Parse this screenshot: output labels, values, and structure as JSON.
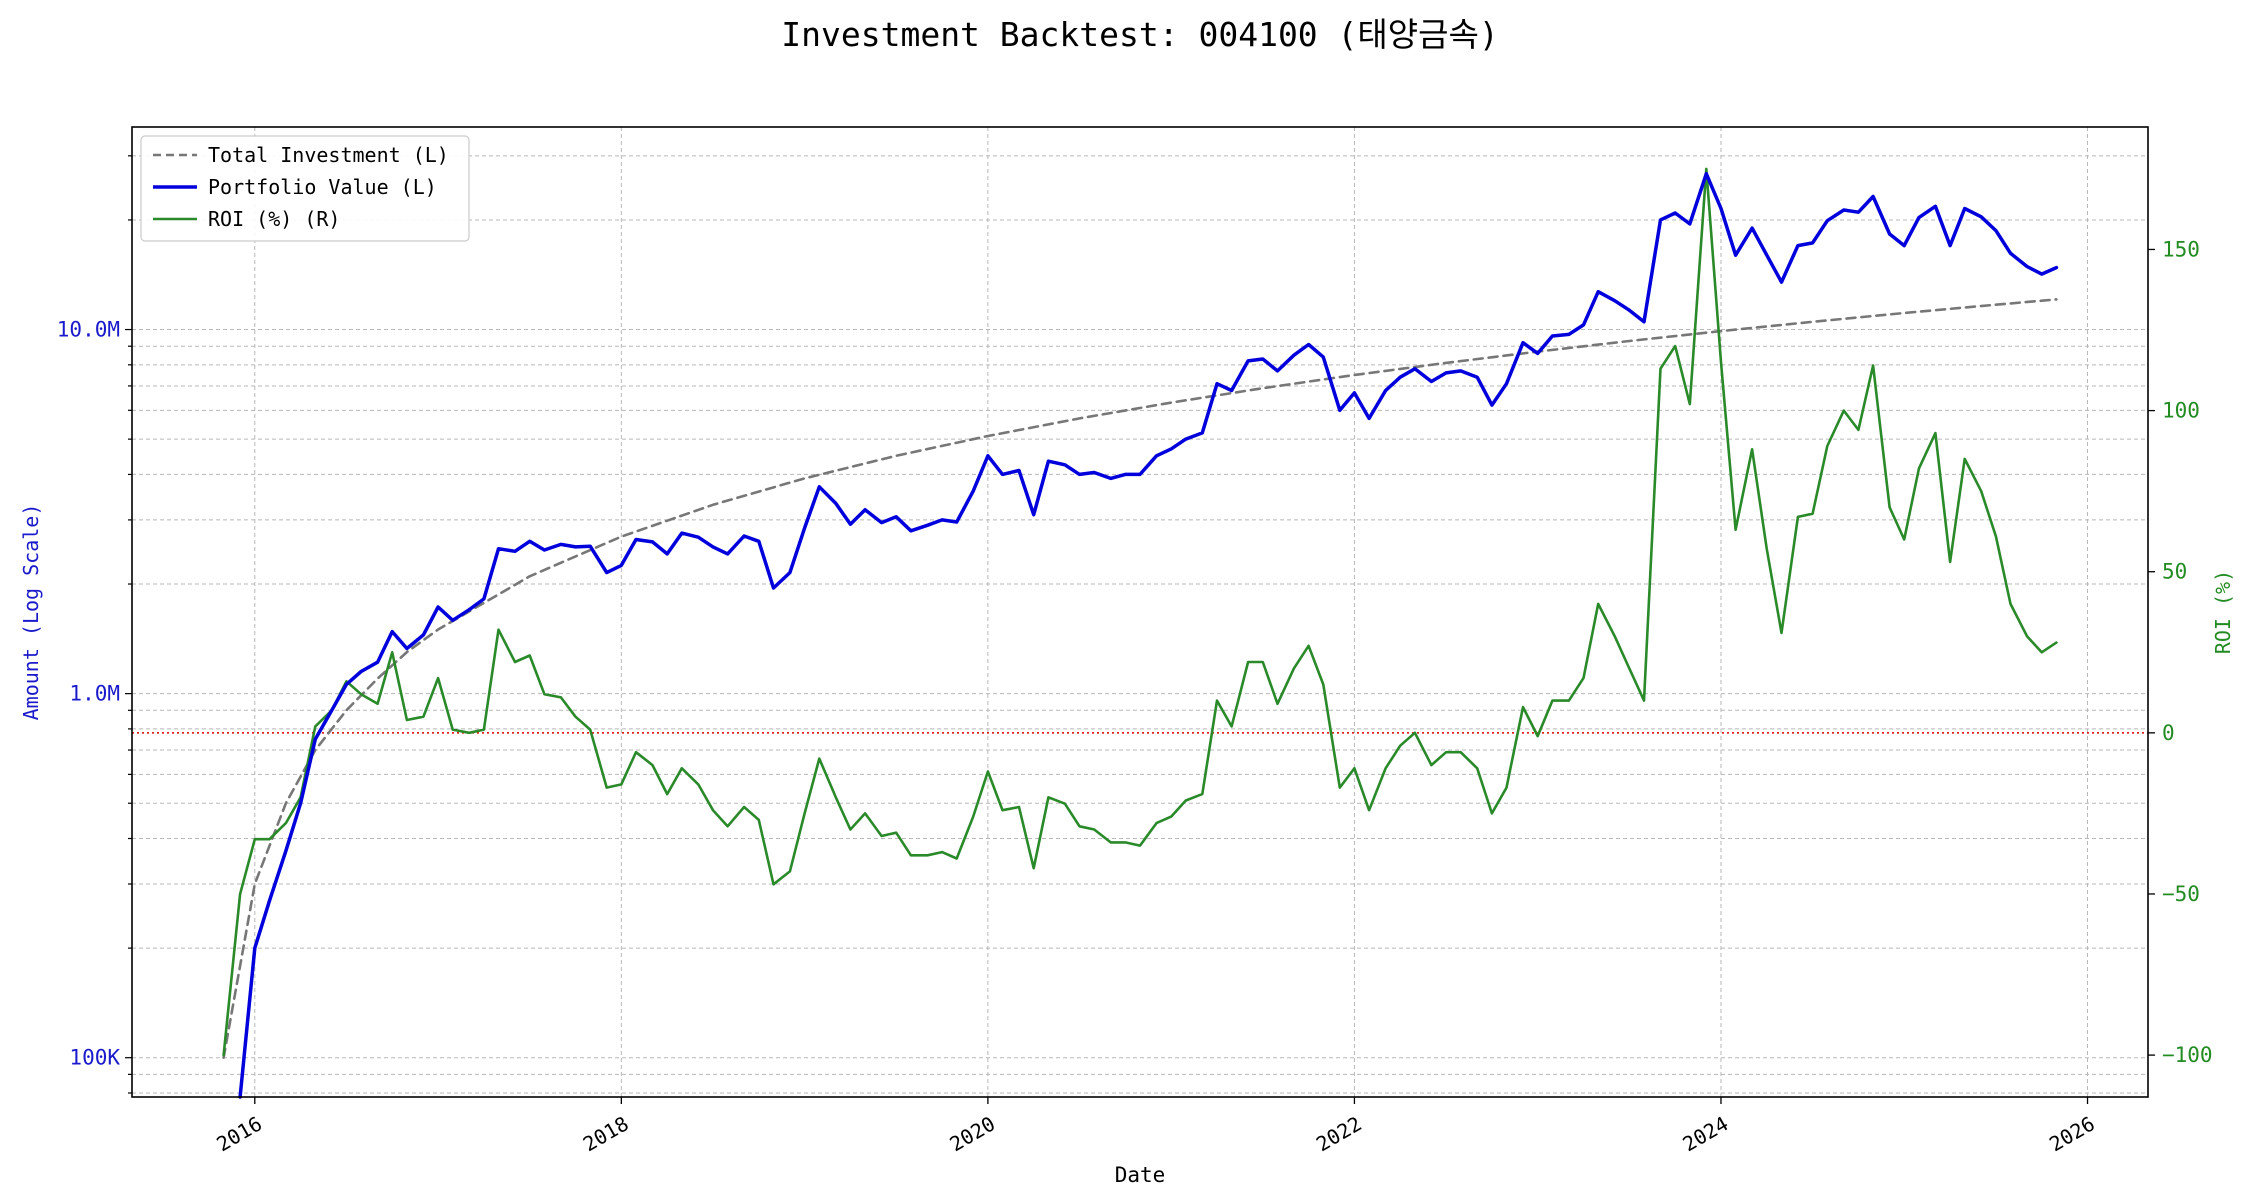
{
  "chart_data": {
    "type": "line",
    "title": "Investment Backtest: 004100 (태양금속)",
    "xlabel": "Date",
    "ylabel_left": "Amount (Log Scale)",
    "ylabel_right": "ROI (%)",
    "left_scale": "log",
    "left_ylim": [
      78000,
      36000000
    ],
    "right_ylim": [
      -113,
      188
    ],
    "xlim": [
      2015.33,
      2026.33
    ],
    "grid": true,
    "legend_position": "top-left",
    "x_ticks": [
      {
        "value": 2016,
        "label": "2016"
      },
      {
        "value": 2018,
        "label": "2018"
      },
      {
        "value": 2020,
        "label": "2020"
      },
      {
        "value": 2022,
        "label": "2022"
      },
      {
        "value": 2024,
        "label": "2024"
      },
      {
        "value": 2026,
        "label": "2026"
      }
    ],
    "left_ticks": [
      {
        "value": 100000,
        "label": "100K"
      },
      {
        "value": 1000000,
        "label": "1.0M"
      },
      {
        "value": 10000000,
        "label": "10.0M"
      }
    ],
    "right_ticks": [
      {
        "value": -100,
        "label": "−100"
      },
      {
        "value": -50,
        "label": "−50"
      },
      {
        "value": 0,
        "label": "0"
      },
      {
        "value": 50,
        "label": "50"
      },
      {
        "value": 100,
        "label": "100"
      },
      {
        "value": 150,
        "label": "150"
      }
    ],
    "zero_line": {
      "axis": "right",
      "value": 0,
      "color": "#dd0000",
      "style": "dotted"
    },
    "colors": {
      "total_investment": "#777777",
      "portfolio_value": "#0000dd",
      "roi": "#2a8a2a",
      "left_axis_text": "#1a1acc",
      "right_axis_text": "#228b22"
    },
    "series": [
      {
        "name": "Total Investment (L)",
        "axis": "left",
        "style": "dashed",
        "x": [
          2015.83,
          2016.0,
          2016.17,
          2016.33,
          2016.5,
          2016.67,
          2016.83,
          2017.0,
          2017.5,
          2018.0,
          2018.5,
          2019.0,
          2019.5,
          2020.0,
          2020.5,
          2021.0,
          2021.5,
          2022.0,
          2022.5,
          2023.0,
          2023.5,
          2024.0,
          2024.5,
          2025.0,
          2025.5,
          2025.83
        ],
        "y": [
          100000,
          300000,
          500000,
          700000,
          900000,
          1100000,
          1300000,
          1500000,
          2100000,
          2700000,
          3300000,
          3900000,
          4500000,
          5100000,
          5700000,
          6300000,
          6900000,
          7500000,
          8100000,
          8700000,
          9300000,
          9900000,
          10500000,
          11100000,
          11700000,
          12100000
        ]
      },
      {
        "name": "Portfolio Value (L)",
        "axis": "left",
        "style": "solid",
        "x": [
          2015.92,
          2016.0,
          2016.08,
          2016.17,
          2016.25,
          2016.33,
          2016.42,
          2016.5,
          2016.58,
          2016.67,
          2016.75,
          2016.83,
          2016.92,
          2017.0,
          2017.08,
          2017.17,
          2017.25,
          2017.33,
          2017.42,
          2017.5,
          2017.58,
          2017.67,
          2017.75,
          2017.83,
          2017.92,
          2018.0,
          2018.08,
          2018.17,
          2018.25,
          2018.33,
          2018.42,
          2018.5,
          2018.58,
          2018.67,
          2018.75,
          2018.83,
          2018.92,
          2019.0,
          2019.08,
          2019.17,
          2019.25,
          2019.33,
          2019.42,
          2019.5,
          2019.58,
          2019.67,
          2019.75,
          2019.83,
          2019.92,
          2020.0,
          2020.08,
          2020.17,
          2020.25,
          2020.33,
          2020.42,
          2020.5,
          2020.58,
          2020.67,
          2020.75,
          2020.83,
          2020.92,
          2021.0,
          2021.08,
          2021.17,
          2021.25,
          2021.33,
          2021.42,
          2021.5,
          2021.58,
          2021.67,
          2021.75,
          2021.83,
          2021.92,
          2022.0,
          2022.08,
          2022.17,
          2022.25,
          2022.33,
          2022.42,
          2022.5,
          2022.58,
          2022.67,
          2022.75,
          2022.83,
          2022.92,
          2023.0,
          2023.08,
          2023.17,
          2023.25,
          2023.33,
          2023.42,
          2023.5,
          2023.58,
          2023.67,
          2023.75,
          2023.83,
          2023.92,
          2024.0,
          2024.08,
          2024.17,
          2024.25,
          2024.33,
          2024.42,
          2024.5,
          2024.58,
          2024.67,
          2024.75,
          2024.83,
          2024.92,
          2025.0,
          2025.08,
          2025.17,
          2025.25,
          2025.33,
          2025.42,
          2025.5,
          2025.58,
          2025.67,
          2025.75,
          2025.83
        ],
        "y": [
          60000,
          200000,
          270000,
          370000,
          500000,
          750000,
          900000,
          1060000,
          1150000,
          1220000,
          1480000,
          1330000,
          1450000,
          1730000,
          1590000,
          1700000,
          1820000,
          2500000,
          2460000,
          2620000,
          2480000,
          2570000,
          2530000,
          2540000,
          2150000,
          2250000,
          2650000,
          2610000,
          2420000,
          2760000,
          2690000,
          2530000,
          2420000,
          2710000,
          2620000,
          1950000,
          2150000,
          2850000,
          3700000,
          3330000,
          2920000,
          3200000,
          2950000,
          3060000,
          2800000,
          2900000,
          3000000,
          2960000,
          3600000,
          4500000,
          4000000,
          4100000,
          3100000,
          4350000,
          4250000,
          4000000,
          4050000,
          3900000,
          4000000,
          4000000,
          4500000,
          4700000,
          5000000,
          5200000,
          7100000,
          6800000,
          8200000,
          8300000,
          7700000,
          8500000,
          9100000,
          8400000,
          6000000,
          6700000,
          5700000,
          6800000,
          7400000,
          7800000,
          7200000,
          7600000,
          7700000,
          7400000,
          6200000,
          7100000,
          9200000,
          8600000,
          9600000,
          9700000,
          10300000,
          12700000,
          12000000,
          11300000,
          10500000,
          20000000,
          20900000,
          19500000,
          26800000,
          21500000,
          16000000,
          19000000,
          16000000,
          13500000,
          17000000,
          17300000,
          19900000,
          21300000,
          21000000,
          23200000,
          18300000,
          17000000,
          20300000,
          21800000,
          17000000,
          21500000,
          20400000,
          18700000,
          16200000,
          14900000,
          14200000,
          14800000
        ]
      },
      {
        "name": "ROI (%) (R)",
        "axis": "right",
        "style": "solid",
        "x": [
          2015.83,
          2015.92,
          2016.0,
          2016.08,
          2016.17,
          2016.25,
          2016.33,
          2016.42,
          2016.5,
          2016.58,
          2016.67,
          2016.75,
          2016.83,
          2016.92,
          2017.0,
          2017.08,
          2017.17,
          2017.25,
          2017.33,
          2017.42,
          2017.5,
          2017.58,
          2017.67,
          2017.75,
          2017.83,
          2017.92,
          2018.0,
          2018.08,
          2018.17,
          2018.25,
          2018.33,
          2018.42,
          2018.5,
          2018.58,
          2018.67,
          2018.75,
          2018.83,
          2018.92,
          2019.0,
          2019.08,
          2019.17,
          2019.25,
          2019.33,
          2019.42,
          2019.5,
          2019.58,
          2019.67,
          2019.75,
          2019.83,
          2019.92,
          2020.0,
          2020.08,
          2020.17,
          2020.25,
          2020.33,
          2020.42,
          2020.5,
          2020.58,
          2020.67,
          2020.75,
          2020.83,
          2020.92,
          2021.0,
          2021.08,
          2021.17,
          2021.25,
          2021.33,
          2021.42,
          2021.5,
          2021.58,
          2021.67,
          2021.75,
          2021.83,
          2021.92,
          2022.0,
          2022.08,
          2022.17,
          2022.25,
          2022.33,
          2022.42,
          2022.5,
          2022.58,
          2022.67,
          2022.75,
          2022.83,
          2022.92,
          2023.0,
          2023.08,
          2023.17,
          2023.25,
          2023.33,
          2023.42,
          2023.5,
          2023.58,
          2023.67,
          2023.75,
          2023.83,
          2023.92,
          2024.0,
          2024.08,
          2024.17,
          2024.25,
          2024.33,
          2024.42,
          2024.5,
          2024.58,
          2024.67,
          2024.75,
          2024.83,
          2024.92,
          2025.0,
          2025.08,
          2025.17,
          2025.25,
          2025.33,
          2025.42,
          2025.5,
          2025.58,
          2025.67,
          2025.75,
          2025.83
        ],
        "y": [
          -100,
          -50,
          -33,
          -33,
          -28,
          -20,
          2,
          7,
          16,
          12,
          9,
          25,
          4,
          5,
          17,
          1,
          0,
          1,
          32,
          22,
          24,
          12,
          11,
          5,
          1,
          -17,
          -16,
          -6,
          -10,
          -19,
          -11,
          -16,
          -24,
          -29,
          -23,
          -27,
          -47,
          -43,
          -25,
          -8,
          -20,
          -30,
          -25,
          -32,
          -31,
          -38,
          -38,
          -37,
          -39,
          -26,
          -12,
          -24,
          -23,
          -42,
          -20,
          -22,
          -29,
          -30,
          -34,
          -34,
          -35,
          -28,
          -26,
          -21,
          -19,
          10,
          2,
          22,
          22,
          9,
          20,
          27,
          15,
          -17,
          -11,
          -24,
          -11,
          -4,
          0,
          -10,
          -6,
          -6,
          -11,
          -25,
          -17,
          8,
          -1,
          10,
          10,
          17,
          40,
          30,
          20,
          10,
          113,
          120,
          102,
          175,
          115,
          63,
          88,
          57,
          31,
          67,
          68,
          89,
          100,
          94,
          114,
          70,
          60,
          82,
          93,
          53,
          85,
          75,
          61,
          40,
          30,
          25,
          28
        ]
      }
    ]
  }
}
